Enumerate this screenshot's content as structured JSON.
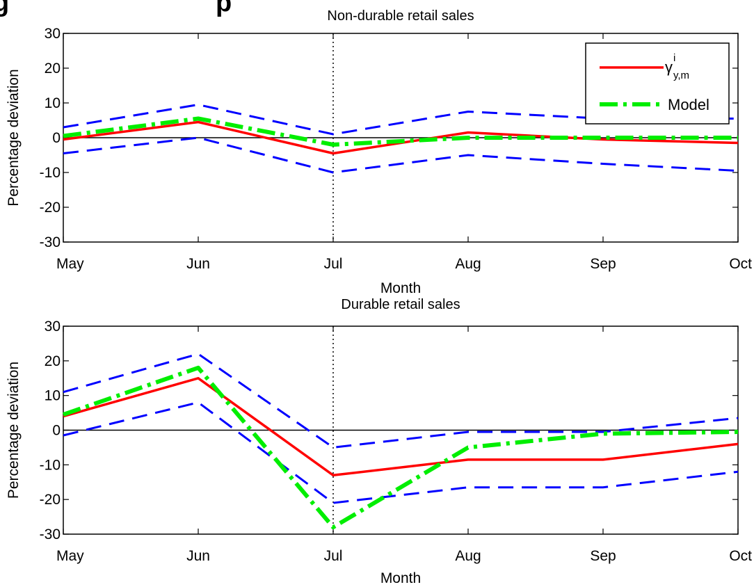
{
  "figure": {
    "cut_title_fragment": "g",
    "cut_title_fragment_right": "p"
  },
  "colors": {
    "data_series": "#ff0000",
    "model_series": "#00ee00",
    "confidence_bands": "#0000ff",
    "zero_line": "#000000",
    "event_marker": "#000000"
  },
  "chart_data": [
    {
      "type": "line",
      "title": "Non-durable retail sales",
      "xlabel": "Month",
      "ylabel": "Percentage deviation",
      "categories": [
        "May",
        "Jun",
        "Jul",
        "Aug",
        "Sep",
        "Oct"
      ],
      "ylim": [
        -30,
        30
      ],
      "yticks": [
        -30,
        -20,
        -10,
        0,
        10,
        20,
        30
      ],
      "event_marker_at": "Jul",
      "grid": false,
      "legend_location": "top-right",
      "legend_math": {
        "base": "γ",
        "sup": "i",
        "sub": "y,m"
      },
      "series": [
        {
          "name": "",
          "role": "upper-band",
          "style": "dashed",
          "values": [
            3,
            9.5,
            1,
            7.5,
            5.5,
            5.5
          ]
        },
        {
          "name": "",
          "role": "lower-band",
          "style": "dashed",
          "values": [
            -4.5,
            0,
            -10,
            -5,
            -7.5,
            -9.5
          ]
        },
        {
          "name": "γ^i_{y,m}",
          "role": "data",
          "style": "solid",
          "values": [
            -0.5,
            4.5,
            -4.5,
            1.5,
            -0.5,
            -1.5
          ]
        },
        {
          "name": "Model",
          "role": "model",
          "style": "dashdot",
          "values": [
            0.5,
            5.5,
            -2,
            0,
            0,
            0
          ]
        }
      ]
    },
    {
      "type": "line",
      "title": "Durable retail sales",
      "xlabel": "Month",
      "ylabel": "Percentage deviation",
      "categories": [
        "May",
        "Jun",
        "Jul",
        "Aug",
        "Sep",
        "Oct"
      ],
      "ylim": [
        -30,
        30
      ],
      "yticks": [
        -30,
        -20,
        -10,
        0,
        10,
        20,
        30
      ],
      "event_marker_at": "Jul",
      "grid": false,
      "series": [
        {
          "name": "",
          "role": "upper-band",
          "style": "dashed",
          "values": [
            11,
            22,
            -5,
            -0.5,
            -0.5,
            3.5
          ]
        },
        {
          "name": "",
          "role": "lower-band",
          "style": "dashed",
          "values": [
            -1.5,
            8,
            -21,
            -16.5,
            -16.5,
            -12
          ]
        },
        {
          "name": "",
          "role": "data",
          "style": "solid",
          "values": [
            4,
            15,
            -13,
            -8.5,
            -8.5,
            -4
          ]
        },
        {
          "name": "",
          "role": "model",
          "style": "dashdot",
          "values": [
            4.5,
            18,
            -28,
            -5,
            -1,
            -0.5
          ]
        }
      ]
    }
  ]
}
